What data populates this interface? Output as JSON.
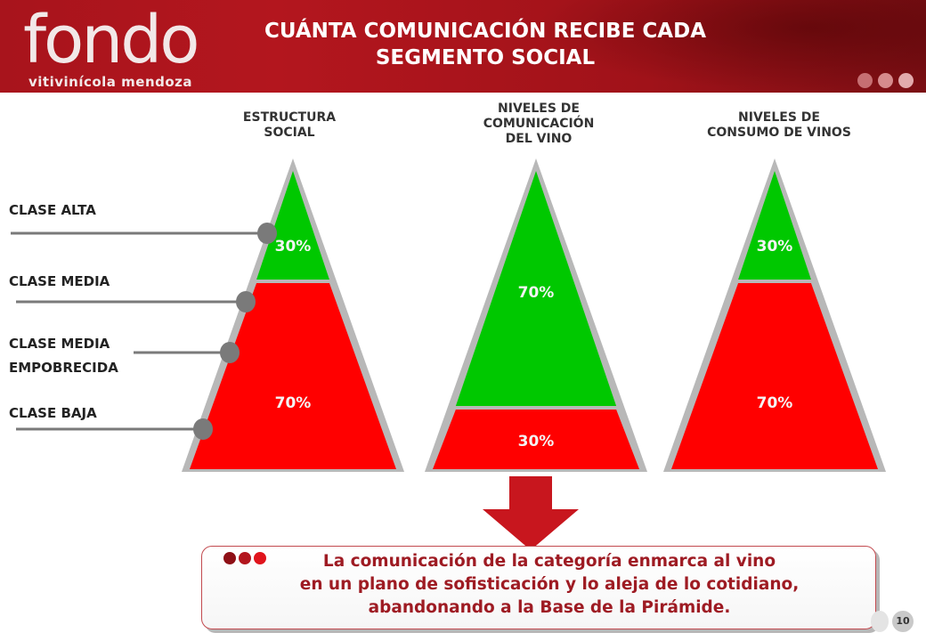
{
  "header": {
    "logo_word": "fondo",
    "logo_sub": "vitivinícola mendoza",
    "title_line1": "CUÁNTA COMUNICACIÓN RECIBE CADA",
    "title_line2": "SEGMENTO SOCIAL"
  },
  "columns": [
    {
      "line1": "ESTRUCTURA",
      "line2": "SOCIAL",
      "line3": ""
    },
    {
      "line1": "NIVELES DE",
      "line2": "COMUNICACIÓN",
      "line3": "DEL VINO"
    },
    {
      "line1": "NIVELES DE",
      "line2": "CONSUMO DE VINOS",
      "line3": ""
    }
  ],
  "classes": [
    "CLASE ALTA",
    "CLASE MEDIA",
    "CLASE MEDIA",
    "EMPOBRECIDA",
    "CLASE BAJA"
  ],
  "pyramids": [
    {
      "top_pct": 30,
      "bottom_pct": 70,
      "top_label": "30%",
      "bottom_label": "70%"
    },
    {
      "top_pct": 70,
      "bottom_pct": 30,
      "top_label": "70%",
      "bottom_label": "30%"
    },
    {
      "top_pct": 30,
      "bottom_pct": 70,
      "top_label": "30%",
      "bottom_label": "70%"
    }
  ],
  "colors": {
    "green": "#00c800",
    "red": "#ff0000",
    "frame": "#b8b8b8",
    "connector": "#7a7a7a",
    "arrow": "#c8161e"
  },
  "message": {
    "line1": "La comunicación  de la categoría enmarca al vino",
    "line2": "en un plano de sofisticación  y lo aleja de lo cotidiano,",
    "line3": "abandonando a la Base de la Pirámide."
  },
  "page_number": "10"
}
